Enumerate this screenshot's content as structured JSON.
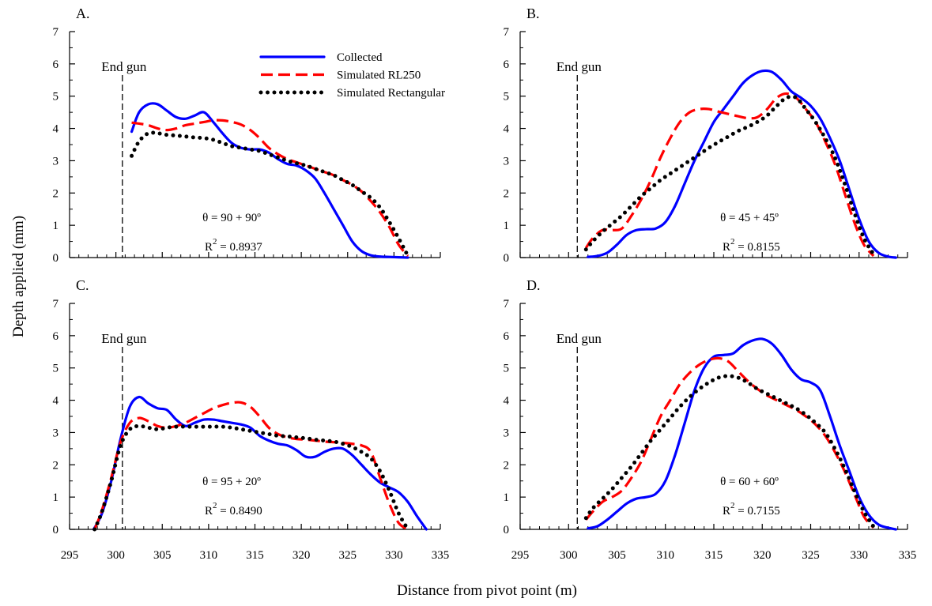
{
  "figure": {
    "ylabel": "Depth applied (mm)",
    "xlabel": "Distance from pivot point (m)"
  },
  "legend": {
    "placement": "top-center of panel A",
    "items": [
      {
        "label": "Collected",
        "color": "#0000ff",
        "style": "solid"
      },
      {
        "label": "Simulated RL250",
        "color": "#ff0000",
        "style": "dashed"
      },
      {
        "label": "Simulated Rectangular",
        "color": "#000000",
        "style": "dotted"
      }
    ]
  },
  "chart_data": [
    {
      "type": "line",
      "panel": "A.",
      "end_gun_label": "End gun",
      "end_gun_x": 300.7,
      "theta_text": "θ = 90 + 90º",
      "r2_prefix": "R",
      "r2_sup": "2",
      "r2_value": " = 0.8937",
      "xlim": [
        295,
        335
      ],
      "ylim": [
        0,
        7
      ],
      "series": [
        {
          "name": "Collected",
          "color": "#0000ff",
          "x": [
            301.7,
            302.5,
            303.5,
            304.5,
            305.5,
            306.5,
            307.5,
            308.5,
            309.5,
            310.5,
            311.5,
            312.5,
            313.5,
            314.5,
            315.5,
            316.5,
            317.5,
            318.5,
            319.5,
            320.5,
            321.5,
            322.5,
            323.5,
            324.5,
            325.5,
            326.5,
            327.5,
            328.5,
            329.5,
            330.5,
            331.5
          ],
          "y": [
            3.9,
            4.5,
            4.75,
            4.75,
            4.55,
            4.35,
            4.3,
            4.4,
            4.5,
            4.2,
            3.85,
            3.55,
            3.4,
            3.35,
            3.35,
            3.25,
            3.05,
            2.9,
            2.85,
            2.7,
            2.45,
            2.0,
            1.5,
            1.0,
            0.5,
            0.2,
            0.07,
            0.03,
            0.02,
            0.01,
            0.0
          ]
        },
        {
          "name": "Simulated RL250",
          "color": "#ff0000",
          "x": [
            301.7,
            302.5,
            303.5,
            304.5,
            305.5,
            306.5,
            307.5,
            308.5,
            309.5,
            310.5,
            311.5,
            312.5,
            313.5,
            314.5,
            315.5,
            316.5,
            317.5,
            318.5,
            319.5,
            320.5,
            321.5,
            322.5,
            323.5,
            324.5,
            325.5,
            326.5,
            327.5,
            328.5,
            329.5,
            330.5,
            331.5
          ],
          "y": [
            4.18,
            4.15,
            4.1,
            4.0,
            3.95,
            4.0,
            4.1,
            4.15,
            4.2,
            4.25,
            4.25,
            4.2,
            4.12,
            3.95,
            3.7,
            3.4,
            3.2,
            3.05,
            2.95,
            2.85,
            2.75,
            2.65,
            2.55,
            2.4,
            2.25,
            2.05,
            1.75,
            1.4,
            0.95,
            0.4,
            0.05
          ]
        },
        {
          "name": "Simulated Rectangular",
          "color": "#000000",
          "x": [
            301.7,
            302.5,
            303.5,
            304.5,
            305.5,
            306.5,
            307.5,
            308.5,
            309.5,
            310.5,
            311.5,
            312.5,
            313.5,
            314.5,
            315.5,
            316.5,
            317.5,
            318.5,
            319.5,
            320.5,
            321.5,
            322.5,
            323.5,
            324.5,
            325.5,
            326.5,
            327.5,
            328.5,
            329.5,
            330.5,
            331.5
          ],
          "y": [
            3.15,
            3.6,
            3.85,
            3.85,
            3.8,
            3.78,
            3.75,
            3.72,
            3.7,
            3.65,
            3.55,
            3.45,
            3.4,
            3.35,
            3.3,
            3.2,
            3.1,
            3.0,
            2.92,
            2.85,
            2.75,
            2.65,
            2.55,
            2.4,
            2.25,
            2.05,
            1.85,
            1.55,
            1.1,
            0.6,
            0.05
          ]
        }
      ]
    },
    {
      "type": "line",
      "panel": "B.",
      "end_gun_label": "End gun",
      "end_gun_x": 300.9,
      "theta_text": "θ = 45 + 45º",
      "r2_prefix": "R",
      "r2_sup": "2",
      "r2_value": " = 0.8155",
      "xlim": [
        295,
        335
      ],
      "ylim": [
        0,
        7
      ],
      "series": [
        {
          "name": "Collected",
          "color": "#0000ff",
          "x": [
            302.0,
            303.0,
            304.0,
            305.0,
            306.0,
            307.0,
            308.0,
            309.0,
            310.0,
            311.0,
            312.0,
            313.0,
            314.0,
            315.0,
            316.0,
            317.0,
            318.0,
            319.0,
            320.0,
            321.0,
            322.0,
            323.0,
            324.0,
            325.0,
            326.0,
            327.0,
            328.0,
            329.0,
            330.0,
            331.0,
            332.0,
            333.0,
            333.8
          ],
          "y": [
            0.02,
            0.05,
            0.15,
            0.4,
            0.7,
            0.85,
            0.88,
            0.9,
            1.1,
            1.6,
            2.3,
            3.0,
            3.6,
            4.2,
            4.6,
            5.0,
            5.4,
            5.65,
            5.78,
            5.75,
            5.5,
            5.15,
            4.95,
            4.7,
            4.3,
            3.7,
            3.0,
            2.1,
            1.2,
            0.5,
            0.15,
            0.03,
            0.0
          ]
        },
        {
          "name": "Simulated RL250",
          "color": "#ff0000",
          "x": [
            301.8,
            302.5,
            303.5,
            304.5,
            305.5,
            306.5,
            307.5,
            308.5,
            309.5,
            310.5,
            311.5,
            312.5,
            313.5,
            314.5,
            315.5,
            316.5,
            317.5,
            318.5,
            319.5,
            320.5,
            321.5,
            322.5,
            323.5,
            324.5,
            325.5,
            326.5,
            327.5,
            328.5,
            329.5,
            330.5,
            331.5
          ],
          "y": [
            0.3,
            0.6,
            0.85,
            0.85,
            0.9,
            1.3,
            1.8,
            2.4,
            3.1,
            3.7,
            4.2,
            4.5,
            4.6,
            4.6,
            4.52,
            4.45,
            4.38,
            4.32,
            4.35,
            4.6,
            4.95,
            5.08,
            4.95,
            4.6,
            4.2,
            3.6,
            2.9,
            2.0,
            1.1,
            0.4,
            0.05
          ]
        },
        {
          "name": "Simulated Rectangular",
          "color": "#000000",
          "x": [
            301.8,
            302.5,
            303.5,
            304.5,
            305.5,
            306.5,
            307.5,
            308.5,
            309.5,
            310.5,
            311.5,
            312.5,
            313.5,
            314.5,
            315.5,
            316.5,
            317.5,
            318.5,
            319.5,
            320.5,
            321.5,
            322.5,
            323.5,
            324.5,
            325.5,
            326.5,
            327.5,
            328.5,
            329.5,
            330.5,
            331.5
          ],
          "y": [
            0.25,
            0.5,
            0.8,
            1.05,
            1.3,
            1.6,
            1.9,
            2.15,
            2.4,
            2.6,
            2.8,
            3.0,
            3.2,
            3.4,
            3.58,
            3.75,
            3.92,
            4.05,
            4.2,
            4.4,
            4.7,
            4.95,
            4.95,
            4.6,
            4.2,
            3.7,
            3.1,
            2.3,
            1.4,
            0.6,
            0.1
          ]
        }
      ]
    },
    {
      "type": "line",
      "panel": "C.",
      "end_gun_label": "End gun",
      "end_gun_x": 300.7,
      "theta_text": "θ = 95 + 20º",
      "r2_prefix": "R",
      "r2_sup": "2",
      "r2_value": " = 0.8490",
      "xlim": [
        295,
        335
      ],
      "ylim": [
        0,
        7
      ],
      "series": [
        {
          "name": "Collected",
          "color": "#0000ff",
          "x": [
            297.6,
            298.5,
            299.5,
            300.5,
            301.5,
            302.5,
            303.5,
            304.5,
            305.5,
            306.5,
            307.5,
            308.5,
            309.5,
            310.5,
            311.5,
            312.5,
            313.5,
            314.5,
            315.5,
            316.5,
            317.5,
            318.5,
            319.5,
            320.5,
            321.5,
            322.5,
            323.5,
            324.5,
            325.5,
            326.5,
            327.5,
            328.5,
            329.5,
            330.5,
            331.5,
            332.5,
            333.5
          ],
          "y": [
            0.0,
            0.5,
            1.5,
            2.8,
            3.8,
            4.1,
            3.9,
            3.75,
            3.7,
            3.4,
            3.2,
            3.3,
            3.4,
            3.4,
            3.35,
            3.3,
            3.25,
            3.15,
            2.9,
            2.75,
            2.65,
            2.6,
            2.45,
            2.25,
            2.25,
            2.4,
            2.5,
            2.5,
            2.3,
            2.0,
            1.7,
            1.45,
            1.3,
            1.15,
            0.85,
            0.4,
            0.0
          ]
        },
        {
          "name": "Simulated RL250",
          "color": "#ff0000",
          "x": [
            297.7,
            298.5,
            299.5,
            300.5,
            301.5,
            302.5,
            303.5,
            304.5,
            305.5,
            306.5,
            307.5,
            308.5,
            309.5,
            310.5,
            311.5,
            312.5,
            313.5,
            314.5,
            315.5,
            316.5,
            317.5,
            318.5,
            319.5,
            320.5,
            321.5,
            322.5,
            323.5,
            324.5,
            325.5,
            326.5,
            327.5,
            328.5,
            329.5,
            330.5,
            331.5
          ],
          "y": [
            0.0,
            0.6,
            1.6,
            2.7,
            3.3,
            3.45,
            3.35,
            3.2,
            3.15,
            3.2,
            3.3,
            3.45,
            3.6,
            3.75,
            3.85,
            3.92,
            3.93,
            3.8,
            3.5,
            3.15,
            2.95,
            2.85,
            2.8,
            2.78,
            2.75,
            2.72,
            2.7,
            2.68,
            2.65,
            2.6,
            2.4,
            1.6,
            0.8,
            0.2,
            0.0
          ]
        },
        {
          "name": "Simulated Rectangular",
          "color": "#000000",
          "x": [
            297.7,
            298.5,
            299.5,
            300.5,
            301.5,
            302.5,
            303.5,
            304.5,
            305.5,
            306.5,
            307.5,
            308.5,
            309.5,
            310.5,
            311.5,
            312.5,
            313.5,
            314.5,
            315.5,
            316.5,
            317.5,
            318.5,
            319.5,
            320.5,
            321.5,
            322.5,
            323.5,
            324.5,
            325.5,
            326.5,
            327.5,
            328.5,
            329.5,
            330.5,
            331.5
          ],
          "y": [
            0.0,
            0.55,
            1.5,
            2.6,
            3.1,
            3.2,
            3.15,
            3.1,
            3.15,
            3.18,
            3.18,
            3.18,
            3.18,
            3.18,
            3.18,
            3.15,
            3.1,
            3.05,
            3.0,
            2.95,
            2.9,
            2.88,
            2.85,
            2.82,
            2.78,
            2.75,
            2.72,
            2.65,
            2.55,
            2.4,
            2.2,
            1.8,
            1.2,
            0.5,
            0.0
          ]
        }
      ]
    },
    {
      "type": "line",
      "panel": "D.",
      "end_gun_label": "End gun",
      "end_gun_x": 300.9,
      "theta_text": "θ = 60 + 60º",
      "r2_prefix": "R",
      "r2_sup": "2",
      "r2_value": " = 0.7155",
      "xlim": [
        295,
        335
      ],
      "ylim": [
        0,
        7
      ],
      "series": [
        {
          "name": "Collected",
          "color": "#0000ff",
          "x": [
            302.0,
            303.0,
            304.0,
            305.0,
            306.0,
            307.0,
            308.0,
            309.0,
            310.0,
            311.0,
            312.0,
            313.0,
            314.0,
            315.0,
            316.0,
            317.0,
            318.0,
            319.0,
            320.0,
            321.0,
            322.0,
            323.0,
            324.0,
            325.0,
            326.0,
            327.0,
            328.0,
            329.0,
            330.0,
            331.0,
            332.0,
            333.0,
            333.8
          ],
          "y": [
            0.03,
            0.1,
            0.3,
            0.55,
            0.8,
            0.95,
            1.0,
            1.1,
            1.5,
            2.3,
            3.3,
            4.3,
            5.0,
            5.35,
            5.4,
            5.45,
            5.7,
            5.85,
            5.9,
            5.75,
            5.4,
            4.95,
            4.65,
            4.55,
            4.3,
            3.5,
            2.6,
            1.8,
            1.0,
            0.45,
            0.15,
            0.05,
            0.0
          ]
        },
        {
          "name": "Simulated RL250",
          "color": "#ff0000",
          "x": [
            301.8,
            302.5,
            303.5,
            304.5,
            305.5,
            306.5,
            307.5,
            308.5,
            309.5,
            310.5,
            311.5,
            312.5,
            313.5,
            314.5,
            315.5,
            316.5,
            317.5,
            318.5,
            319.5,
            320.5,
            321.5,
            322.5,
            323.5,
            324.5,
            325.5,
            326.5,
            327.5,
            328.5,
            329.5,
            330.5,
            331.5
          ],
          "y": [
            0.3,
            0.55,
            0.85,
            1.0,
            1.2,
            1.6,
            2.1,
            2.8,
            3.5,
            4.0,
            4.5,
            4.85,
            5.1,
            5.25,
            5.3,
            5.2,
            4.9,
            4.6,
            4.35,
            4.15,
            4.0,
            3.85,
            3.7,
            3.5,
            3.25,
            2.9,
            2.4,
            1.8,
            1.1,
            0.4,
            0.05
          ]
        },
        {
          "name": "Simulated Rectangular",
          "color": "#000000",
          "x": [
            301.8,
            302.5,
            303.5,
            304.5,
            305.5,
            306.5,
            307.5,
            308.5,
            309.5,
            310.5,
            311.5,
            312.5,
            313.5,
            314.5,
            315.5,
            316.5,
            317.5,
            318.5,
            319.5,
            320.5,
            321.5,
            322.5,
            323.5,
            324.5,
            325.5,
            326.5,
            327.5,
            328.5,
            329.5,
            330.5,
            331.5
          ],
          "y": [
            0.35,
            0.65,
            0.95,
            1.25,
            1.6,
            1.95,
            2.35,
            2.75,
            3.1,
            3.45,
            3.8,
            4.1,
            4.35,
            4.55,
            4.7,
            4.75,
            4.7,
            4.55,
            4.35,
            4.2,
            4.05,
            3.9,
            3.75,
            3.55,
            3.3,
            3.0,
            2.5,
            1.9,
            1.2,
            0.55,
            0.08
          ]
        }
      ]
    }
  ]
}
